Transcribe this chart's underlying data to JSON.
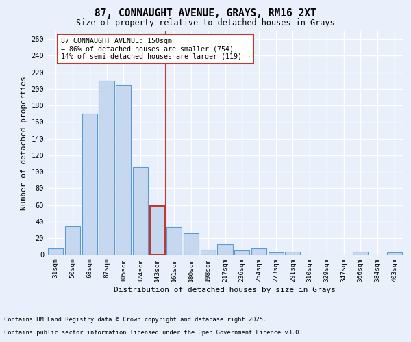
{
  "title_line1": "87, CONNAUGHT AVENUE, GRAYS, RM16 2XT",
  "title_line2": "Size of property relative to detached houses in Grays",
  "xlabel": "Distribution of detached houses by size in Grays",
  "ylabel": "Number of detached properties",
  "categories": [
    "31sqm",
    "50sqm",
    "68sqm",
    "87sqm",
    "105sqm",
    "124sqm",
    "143sqm",
    "161sqm",
    "180sqm",
    "198sqm",
    "217sqm",
    "236sqm",
    "254sqm",
    "273sqm",
    "291sqm",
    "310sqm",
    "329sqm",
    "347sqm",
    "366sqm",
    "384sqm",
    "403sqm"
  ],
  "values": [
    8,
    34,
    170,
    210,
    205,
    106,
    59,
    33,
    26,
    6,
    13,
    5,
    8,
    3,
    4,
    0,
    0,
    0,
    4,
    0,
    3
  ],
  "bar_color": "#c5d8f0",
  "bar_edge_color": "#5b9bd5",
  "highlight_index": 6,
  "highlight_bar_edge_color": "#c0392b",
  "vline_color": "#c0392b",
  "vline_x": 6.5,
  "annotation_text": "87 CONNAUGHT AVENUE: 150sqm\n← 86% of detached houses are smaller (754)\n14% of semi-detached houses are larger (119) →",
  "annotation_box_color": "#ffffff",
  "annotation_box_edge_color": "#c0392b",
  "yticks": [
    0,
    20,
    40,
    60,
    80,
    100,
    120,
    140,
    160,
    180,
    200,
    220,
    240,
    260
  ],
  "ylim": [
    0,
    270
  ],
  "background_color": "#eaf0fb",
  "plot_bg_color": "#eaf0fb",
  "grid_color": "#ffffff",
  "footer_line1": "Contains HM Land Registry data © Crown copyright and database right 2025.",
  "footer_line2": "Contains public sector information licensed under the Open Government Licence v3.0."
}
